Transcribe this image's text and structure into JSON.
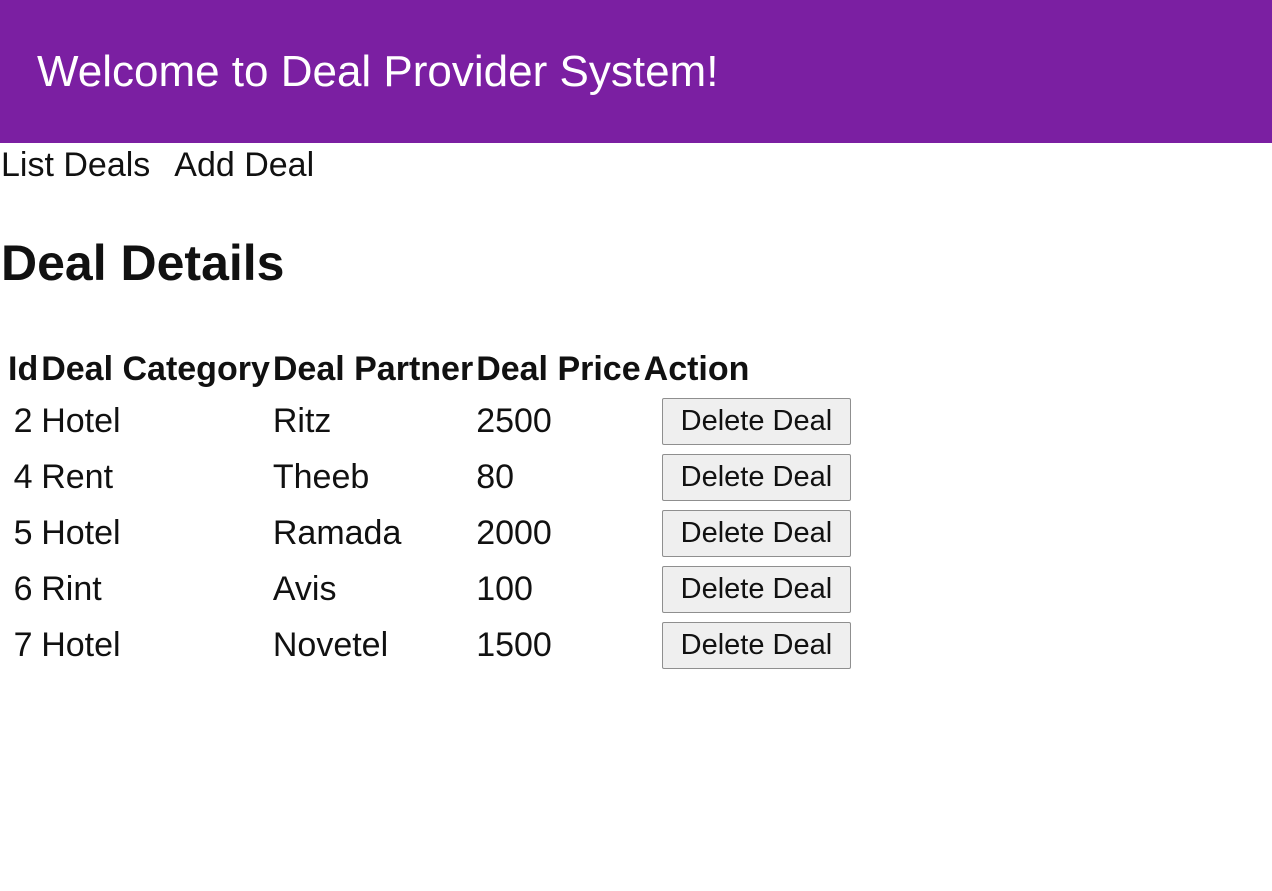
{
  "header": {
    "title": "Welcome to Deal Provider System!",
    "background_color": "#7b1fa2"
  },
  "nav": {
    "list_deals": "List Deals",
    "add_deal": "Add Deal"
  },
  "page": {
    "title": "Deal Details"
  },
  "table": {
    "columns": [
      "Id",
      "Deal Category",
      "Deal Partner",
      "Deal Price",
      "Action"
    ],
    "rows": [
      {
        "id": "2",
        "category": "Hotel",
        "partner": "Ritz",
        "price": "2500",
        "action": "Delete Deal"
      },
      {
        "id": "4",
        "category": "Rent",
        "partner": "Theeb",
        "price": "80",
        "action": "Delete Deal"
      },
      {
        "id": "5",
        "category": "Hotel",
        "partner": "Ramada",
        "price": "2000",
        "action": "Delete Deal"
      },
      {
        "id": "6",
        "category": "Rint",
        "partner": "Avis",
        "price": "100",
        "action": "Delete Deal"
      },
      {
        "id": "7",
        "category": "Hotel",
        "partner": "Novetel",
        "price": "1500",
        "action": "Delete Deal"
      }
    ]
  }
}
